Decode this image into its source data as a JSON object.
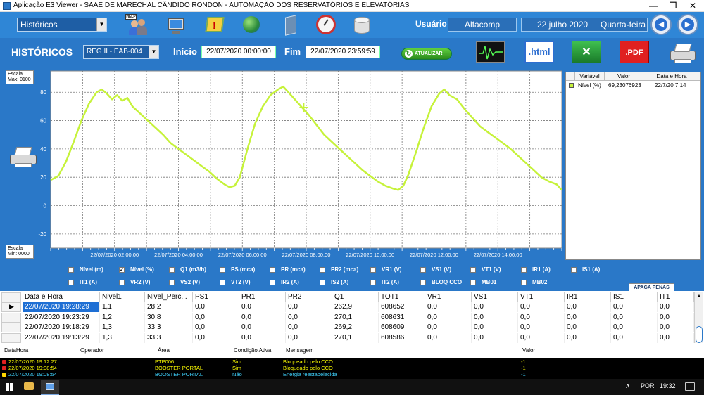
{
  "window": {
    "title": "Aplicação E3 Viewer - SAAE DE MARECHAL CÂNDIDO RONDON - AUTOMAÇÃO DOS RESERVATÓRIOS E ELEVATÓRIAS",
    "minimize": "—",
    "maximize": "❐",
    "close": "✕"
  },
  "topbar": {
    "screen_select": "Históricos",
    "help_label": "HELP",
    "user_label": "Usuário",
    "user_value": "Alfacomp",
    "date_value": "22 julho 2020",
    "weekday_value": "Quarta-feira",
    "icons": [
      "help-users-icon",
      "network-computer-icon",
      "alarm-warning-icon",
      "globe-icon",
      "door-icon",
      "gauge-icon",
      "database-icon"
    ]
  },
  "historicos": {
    "title": "HISTÓRICOS",
    "station_select": "REG II - EAB-004",
    "inicio_label": "Início",
    "inicio_value": "22/07/2020 00:00:00",
    "fim_label": "Fim",
    "fim_value": "22/07/2020 23:59:59",
    "atualizar_label": "ATUALIZAR",
    "html_label": ".html",
    "pdf_label": ".PDF"
  },
  "chart_data": {
    "type": "line",
    "ylim": [
      -30,
      95
    ],
    "y_ticks": [
      80,
      60,
      40,
      20,
      0,
      -20
    ],
    "x_tick_labels": [
      "22/07/2020 02:00:00",
      "22/07/2020 04:00:00",
      "22/07/2020 06:00:00",
      "22/07/2020 08:00:00",
      "22/07/2020 10:00:00",
      "22/07/2020 12:00:00",
      "22/07/2020 14:00:00"
    ],
    "scale_max_label": "Escala\nMax: 0100",
    "scale_min_label": "Escala\nMin: 0000",
    "series": [
      {
        "name": "Nível (%)",
        "color": "#c6f23a",
        "points": [
          [
            0.0,
            18
          ],
          [
            0.3,
            21
          ],
          [
            0.6,
            31
          ],
          [
            0.9,
            45
          ],
          [
            1.2,
            60
          ],
          [
            1.5,
            72
          ],
          [
            1.8,
            80
          ],
          [
            2.0,
            82
          ],
          [
            2.2,
            79
          ],
          [
            2.4,
            75
          ],
          [
            2.6,
            78
          ],
          [
            2.8,
            74
          ],
          [
            3.0,
            76
          ],
          [
            3.2,
            70
          ],
          [
            3.5,
            65
          ],
          [
            3.8,
            60
          ],
          [
            4.1,
            55
          ],
          [
            4.4,
            50
          ],
          [
            4.7,
            44
          ],
          [
            5.0,
            40
          ],
          [
            5.3,
            36
          ],
          [
            5.6,
            32
          ],
          [
            5.9,
            28
          ],
          [
            6.2,
            24
          ],
          [
            6.5,
            19
          ],
          [
            6.8,
            15
          ],
          [
            7.0,
            13
          ],
          [
            7.2,
            14
          ],
          [
            7.4,
            20
          ],
          [
            7.7,
            40
          ],
          [
            8.0,
            58
          ],
          [
            8.3,
            70
          ],
          [
            8.6,
            78
          ],
          [
            8.9,
            82
          ],
          [
            9.1,
            84
          ],
          [
            9.3,
            80
          ],
          [
            9.6,
            74
          ],
          [
            9.8,
            70
          ],
          [
            10.1,
            64
          ],
          [
            10.4,
            57
          ],
          [
            10.7,
            50
          ],
          [
            11.0,
            45
          ],
          [
            11.3,
            40
          ],
          [
            11.6,
            35
          ],
          [
            11.9,
            30
          ],
          [
            12.2,
            25
          ],
          [
            12.5,
            21
          ],
          [
            12.8,
            17
          ],
          [
            13.1,
            14
          ],
          [
            13.4,
            12
          ],
          [
            13.6,
            11
          ],
          [
            13.8,
            14
          ],
          [
            14.0,
            22
          ],
          [
            14.3,
            38
          ],
          [
            14.6,
            55
          ],
          [
            14.9,
            70
          ],
          [
            15.2,
            79
          ],
          [
            15.4,
            82
          ],
          [
            15.6,
            78
          ],
          [
            15.9,
            75
          ],
          [
            16.2,
            68
          ],
          [
            16.5,
            62
          ],
          [
            16.8,
            56
          ],
          [
            17.1,
            52
          ],
          [
            17.4,
            48
          ],
          [
            17.7,
            44
          ],
          [
            18.0,
            40
          ],
          [
            18.3,
            35
          ],
          [
            18.6,
            30
          ],
          [
            18.9,
            25
          ],
          [
            19.2,
            20
          ],
          [
            19.5,
            17
          ],
          [
            19.8,
            15
          ],
          [
            20.0,
            11
          ]
        ]
      }
    ],
    "cursor_point": [
      9.9,
      69.2
    ]
  },
  "variable_grid": {
    "headers": [
      "Variável",
      "Valor",
      "Data e Hora"
    ],
    "rows": [
      {
        "variavel": "Nível (%)",
        "valor": "69,23076923",
        "data_hora": "22/7/20 7:14"
      }
    ]
  },
  "checkboxes": {
    "row1": [
      {
        "label": "Nível (m)",
        "checked": false
      },
      {
        "label": "Nível (%)",
        "checked": true
      },
      {
        "label": "Q1 (m3/h)",
        "checked": false
      },
      {
        "label": "PS (mca)",
        "checked": false
      },
      {
        "label": "PR (mca)",
        "checked": false
      },
      {
        "label": "PR2 (mca)",
        "checked": false
      },
      {
        "label": "VR1 (V)",
        "checked": false
      },
      {
        "label": "VS1 (V)",
        "checked": false
      },
      {
        "label": "VT1 (V)",
        "checked": false
      },
      {
        "label": "IR1 (A)",
        "checked": false
      },
      {
        "label": "IS1 (A)",
        "checked": false
      }
    ],
    "row2": [
      {
        "label": "IT1 (A)",
        "checked": false
      },
      {
        "label": "VR2 (V)",
        "checked": false
      },
      {
        "label": "VS2 (V)",
        "checked": false
      },
      {
        "label": "VT2 (V)",
        "checked": false
      },
      {
        "label": "IR2 (A)",
        "checked": false
      },
      {
        "label": "IS2 (A)",
        "checked": false
      },
      {
        "label": "IT2 (A)",
        "checked": false
      },
      {
        "label": "BLOQ CCO",
        "checked": false
      },
      {
        "label": "MB01",
        "checked": false
      },
      {
        "label": "MB02",
        "checked": false
      }
    ],
    "apaga_label": "APAGA PENAS"
  },
  "data_table": {
    "headers": [
      "Data e Hora",
      "Nivel1",
      "Nivel_Perc...",
      "PS1",
      "PR1",
      "PR2",
      "Q1",
      "TOT1",
      "VR1",
      "VS1",
      "VT1",
      "IR1",
      "IS1",
      "IT1"
    ],
    "rows": [
      [
        "22/07/2020 19:28:29",
        "1,1",
        "28,2",
        "0,0",
        "0,0",
        "0,0",
        "262,9",
        "608652",
        "0,0",
        "0,0",
        "0,0",
        "0,0",
        "0,0",
        "0,0"
      ],
      [
        "22/07/2020 19:23:29",
        "1,2",
        "30,8",
        "0,0",
        "0,0",
        "0,0",
        "270,1",
        "608631",
        "0,0",
        "0,0",
        "0,0",
        "0,0",
        "0,0",
        "0,0"
      ],
      [
        "22/07/2020 19:18:29",
        "1,3",
        "33,3",
        "0,0",
        "0,0",
        "0,0",
        "269,2",
        "608609",
        "0,0",
        "0,0",
        "0,0",
        "0,0",
        "0,0",
        "0,0"
      ],
      [
        "22/07/2020 19:13:29",
        "1,3",
        "33,3",
        "0,0",
        "0,0",
        "0,0",
        "270,1",
        "608586",
        "0,0",
        "0,0",
        "0,0",
        "0,0",
        "0,0",
        "0,0"
      ]
    ]
  },
  "alarm_panel": {
    "headers": [
      "DataHora",
      "Operador",
      "Área",
      "Condição Ativa",
      "Mensagem",
      "Valor"
    ],
    "rows": [
      {
        "datahora": "22/07/2020 19:12:27",
        "operador": "",
        "area": "PTP006",
        "condicao": "Sim",
        "mensagem": "Bloqueado pelo CCO",
        "valor": "-1",
        "color": "#ffff00",
        "icon_color": "#e02020"
      },
      {
        "datahora": "22/07/2020 19:08:54",
        "operador": "",
        "area": "BOOSTER PORTAL",
        "condicao": "Sim",
        "mensagem": "Bloqueado pelo CCO",
        "valor": "-1",
        "color": "#ffff00",
        "icon_color": "#e02020"
      },
      {
        "datahora": "22/07/2020 19:08:54",
        "operador": "",
        "area": "BOOSTER PORTAL",
        "condicao": "Não",
        "mensagem": "Energia reestabelecida",
        "valor": "-1",
        "color": "#3fd3ff",
        "icon_color": "#ffd700"
      }
    ]
  },
  "taskbar": {
    "language": "POR",
    "time": "19:32"
  }
}
